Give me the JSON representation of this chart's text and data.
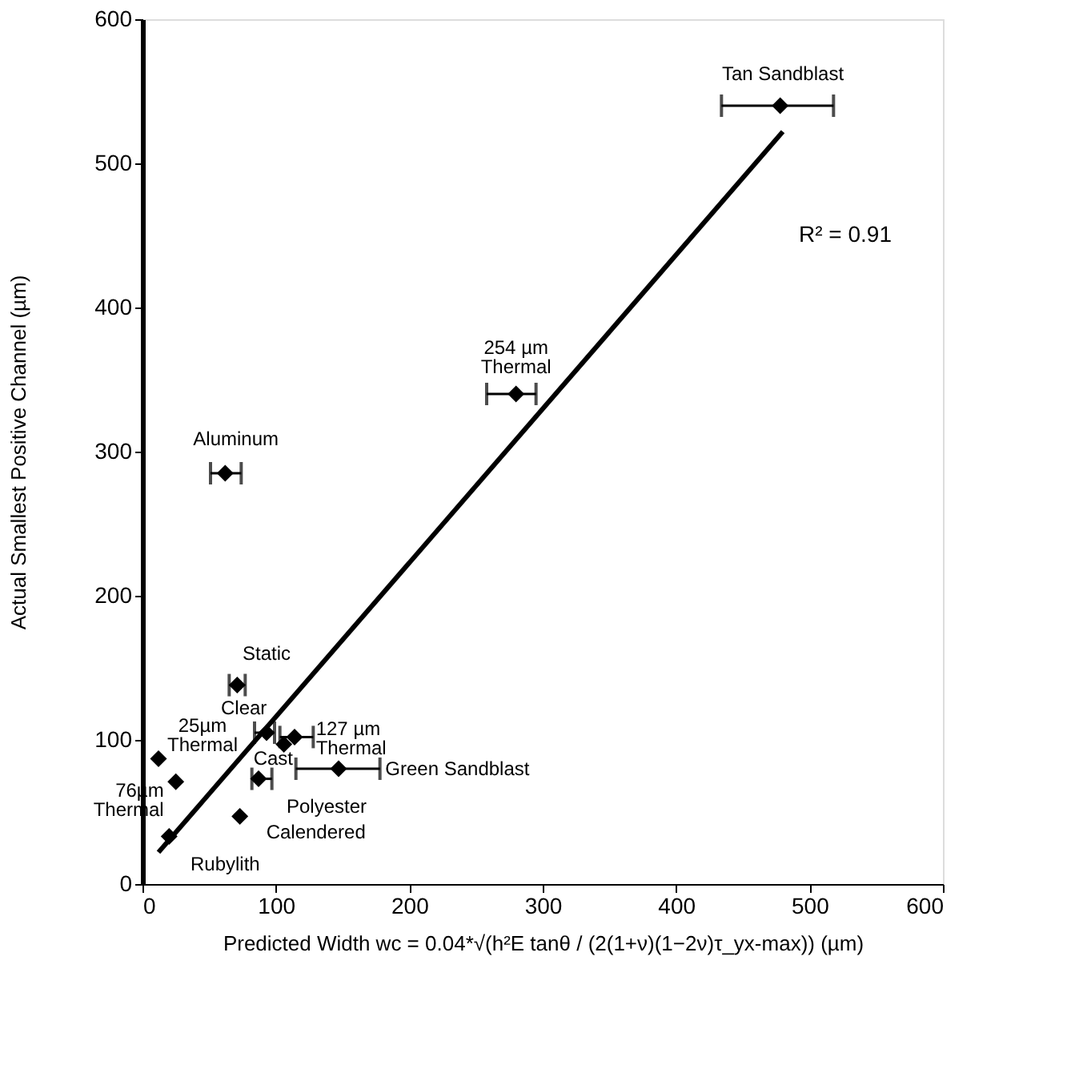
{
  "chart_data": {
    "type": "scatter",
    "xlabel": "Predicted Width  wc = 0.04*√(h²E tanθ / (2(1+ν)(1−2ν)τ_yx-max))  (µm)",
    "ylabel": "Actual Smallest Positive Channel  (µm)",
    "xlim": [
      0,
      600
    ],
    "xticks": [
      0,
      100,
      200,
      300,
      400,
      500,
      600
    ],
    "ylim": [
      0,
      600
    ],
    "yticks": [
      0,
      100,
      200,
      300,
      400,
      500,
      600
    ],
    "grid": false,
    "marker": "diamond",
    "series": [
      {
        "name": "Tan Sandblast",
        "color": "#000000",
        "x": [
          478
        ],
        "values": [
          540
        ],
        "xerrors": [
          [
            434,
            518
          ]
        ]
      },
      {
        "name": "254 µm\nThermal",
        "color": "#000000",
        "x": [
          280
        ],
        "values": [
          340
        ],
        "xerrors": [
          [
            258,
            295
          ]
        ]
      },
      {
        "name": "Aluminum",
        "color": "#000000",
        "x": [
          62
        ],
        "values": [
          285
        ],
        "xerrors": [
          [
            51,
            74
          ]
        ]
      },
      {
        "name": "Static",
        "color": "#000000",
        "x": [
          71
        ],
        "values": [
          138
        ],
        "xerrors": [
          [
            65,
            77
          ]
        ]
      },
      {
        "name": "Clear",
        "color": "#000000",
        "x": [
          93
        ],
        "values": [
          105
        ],
        "xerrors": [
          [
            84,
            99
          ]
        ]
      },
      {
        "name": "Cast",
        "color": "#000000",
        "x": [
          106
        ],
        "values": [
          97
        ]
      },
      {
        "name": "127 µm\nThermal",
        "color": "#000000",
        "x": [
          114
        ],
        "values": [
          102
        ],
        "xerrors": [
          [
            103,
            128
          ]
        ]
      },
      {
        "name": "Green Sandblast",
        "color": "#000000",
        "x": [
          147
        ],
        "values": [
          80
        ],
        "xerrors": [
          [
            115,
            178
          ]
        ]
      },
      {
        "name": "Polyester",
        "color": "#000000",
        "x": [
          87
        ],
        "values": [
          73
        ],
        "xerrors": [
          [
            82,
            97
          ]
        ]
      },
      {
        "name": "Calendered",
        "color": "#000000",
        "x": [
          73
        ],
        "values": [
          47
        ]
      },
      {
        "name": "25µm\nThermal",
        "color": "#000000",
        "x": [
          12
        ],
        "values": [
          87
        ]
      },
      {
        "name": "76µm\nThermal",
        "color": "#000000",
        "x": [
          25
        ],
        "values": [
          71
        ]
      },
      {
        "name": "Rubylith",
        "color": "#000000",
        "x": [
          20
        ],
        "values": [
          33
        ]
      },
      {
        "type": "line",
        "color": "#000000",
        "line_style": "solid",
        "marker": "none",
        "x": [
          12,
          480
        ],
        "values": [
          22,
          522
        ]
      }
    ],
    "annotations": [
      "R² = 0.91"
    ]
  }
}
